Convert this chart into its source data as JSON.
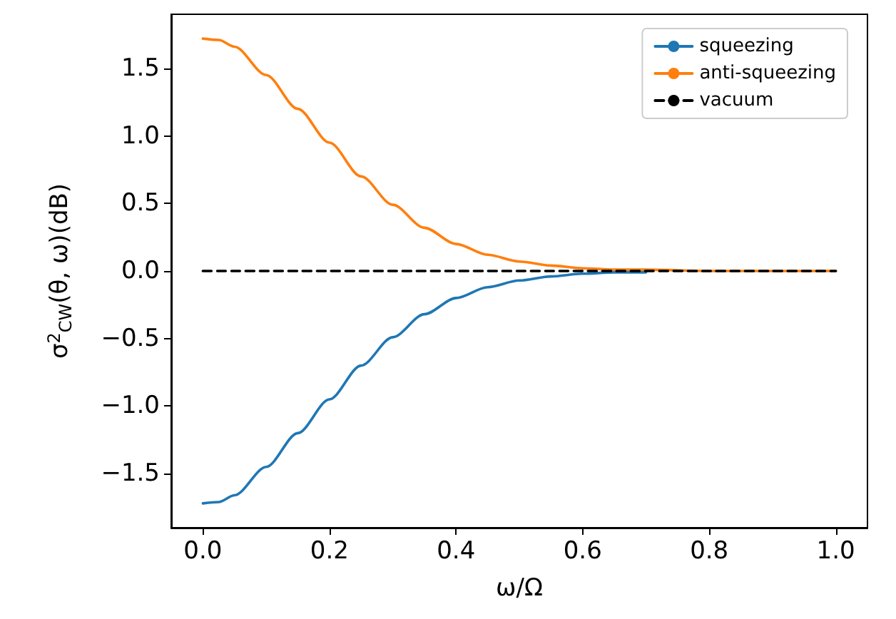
{
  "chart_data": {
    "type": "line",
    "xlabel": "ω/Ω",
    "ylabel": "σ$^{2}$$_{CW}$(θ, ω)(dB)",
    "x": [
      0,
      0.025,
      0.05,
      0.1,
      0.15,
      0.2,
      0.25,
      0.3,
      0.35,
      0.4,
      0.45,
      0.5,
      0.55,
      0.6,
      0.65,
      0.7,
      0.8,
      0.9,
      1.0
    ],
    "series": [
      {
        "name": "squeezing",
        "color": "#1f77b4",
        "values": [
          -1.72,
          -1.71,
          -1.66,
          -1.45,
          -1.2,
          -0.95,
          -0.7,
          -0.49,
          -0.32,
          -0.2,
          -0.12,
          -0.07,
          -0.04,
          -0.02,
          -0.01,
          -0.01,
          null,
          null,
          null
        ]
      },
      {
        "name": "anti-squeezing",
        "color": "#ff7f0e",
        "values": [
          1.72,
          1.71,
          1.66,
          1.45,
          1.2,
          0.95,
          0.7,
          0.49,
          0.32,
          0.2,
          0.12,
          0.07,
          0.04,
          0.02,
          0.01,
          0.01,
          0,
          0,
          0
        ]
      },
      {
        "name": "vacuum",
        "color": "#000000",
        "line_style": "dashed",
        "values": [
          0,
          0,
          0,
          0,
          0,
          0,
          0,
          0,
          0,
          0,
          0,
          0,
          0,
          0,
          0,
          0,
          0,
          0,
          0
        ]
      }
    ],
    "xlim": [
      -0.05,
      1.05
    ],
    "xticks": [
      {
        "value": 0,
        "label": "0.0"
      },
      0.2,
      0.4,
      0.6,
      0.8,
      {
        "value": 1,
        "label": "1.0"
      }
    ],
    "ylim": [
      -1.9,
      1.9
    ],
    "yticks": [
      {
        "value": -1.5,
        "label": "−1.5"
      },
      {
        "value": -1,
        "label": "−1.0"
      },
      {
        "value": -0.5,
        "label": "−0.5"
      },
      {
        "value": 0,
        "label": "0.0"
      },
      0.5,
      {
        "value": 1,
        "label": "1.0"
      },
      1.5
    ],
    "legend": "top right",
    "grid": false,
    "marker": "none",
    "line_style": "solid"
  }
}
